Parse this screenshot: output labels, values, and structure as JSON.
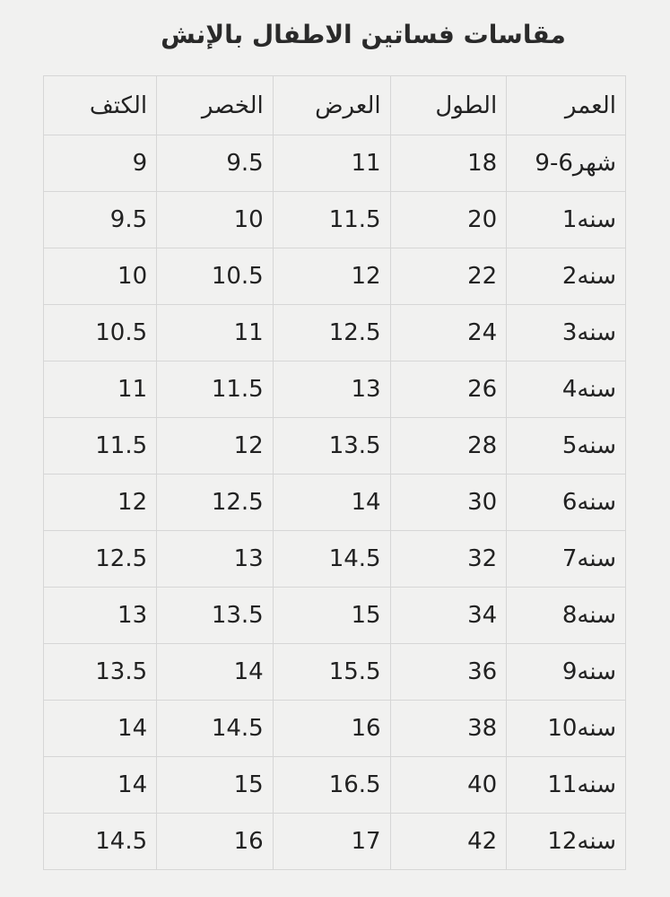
{
  "title": "مقاسات فساتين الاطفال بالإنش",
  "table": {
    "headers": [
      "العمر",
      "الطول",
      "العرض",
      "الخصر",
      "الكتف"
    ],
    "rows": [
      [
        "9-6شهر",
        "18",
        "11",
        "9.5",
        "9"
      ],
      [
        "1سنه",
        "20",
        "11.5",
        "10",
        "9.5"
      ],
      [
        "2سنه",
        "22",
        "12",
        "10.5",
        "10"
      ],
      [
        "3سنه",
        "24",
        "12.5",
        "11",
        "10.5"
      ],
      [
        "4سنه",
        "26",
        "13",
        "11.5",
        "11"
      ],
      [
        "5سنه",
        "28",
        "13.5",
        "12",
        "11.5"
      ],
      [
        "6سنه",
        "30",
        "14",
        "12.5",
        "12"
      ],
      [
        "7سنه",
        "32",
        "14.5",
        "13",
        "12.5"
      ],
      [
        "8سنه",
        "34",
        "15",
        "13.5",
        "13"
      ],
      [
        "9سنه",
        "36",
        "15.5",
        "14",
        "13.5"
      ],
      [
        "10سنه",
        "38",
        "16",
        "14.5",
        "14"
      ],
      [
        "11سنه",
        "40",
        "16.5",
        "15",
        "14"
      ],
      [
        "12سنه",
        "42",
        "17",
        "16",
        "14.5"
      ]
    ]
  }
}
